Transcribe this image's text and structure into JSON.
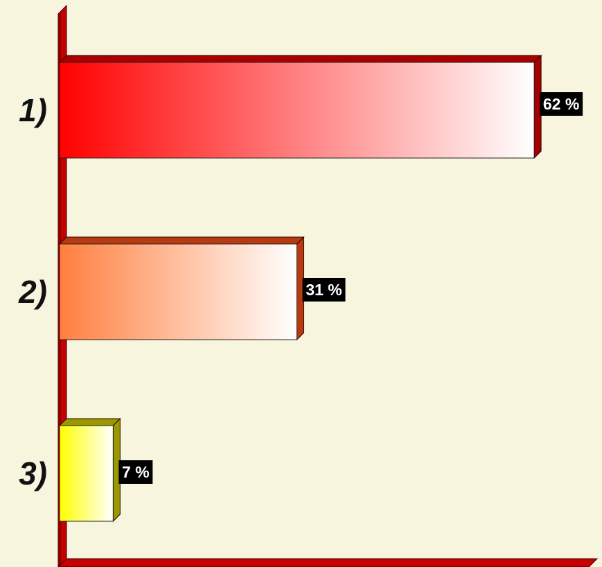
{
  "chart_data": {
    "type": "bar",
    "orientation": "horizontal",
    "categories": [
      "1)",
      "2)",
      "3)"
    ],
    "values": [
      62,
      31,
      7
    ],
    "value_labels": [
      "62 %",
      "31 %",
      "7 %"
    ],
    "unit": "%",
    "colors": [
      "#ff0000",
      "#ff7f3f",
      "#ffff00"
    ],
    "side_colors": [
      "#a80000",
      "#b83a10",
      "#9a9a00"
    ],
    "axis_color": "#c40000",
    "label_bg": "#000000",
    "grid": false,
    "legend": "none"
  }
}
